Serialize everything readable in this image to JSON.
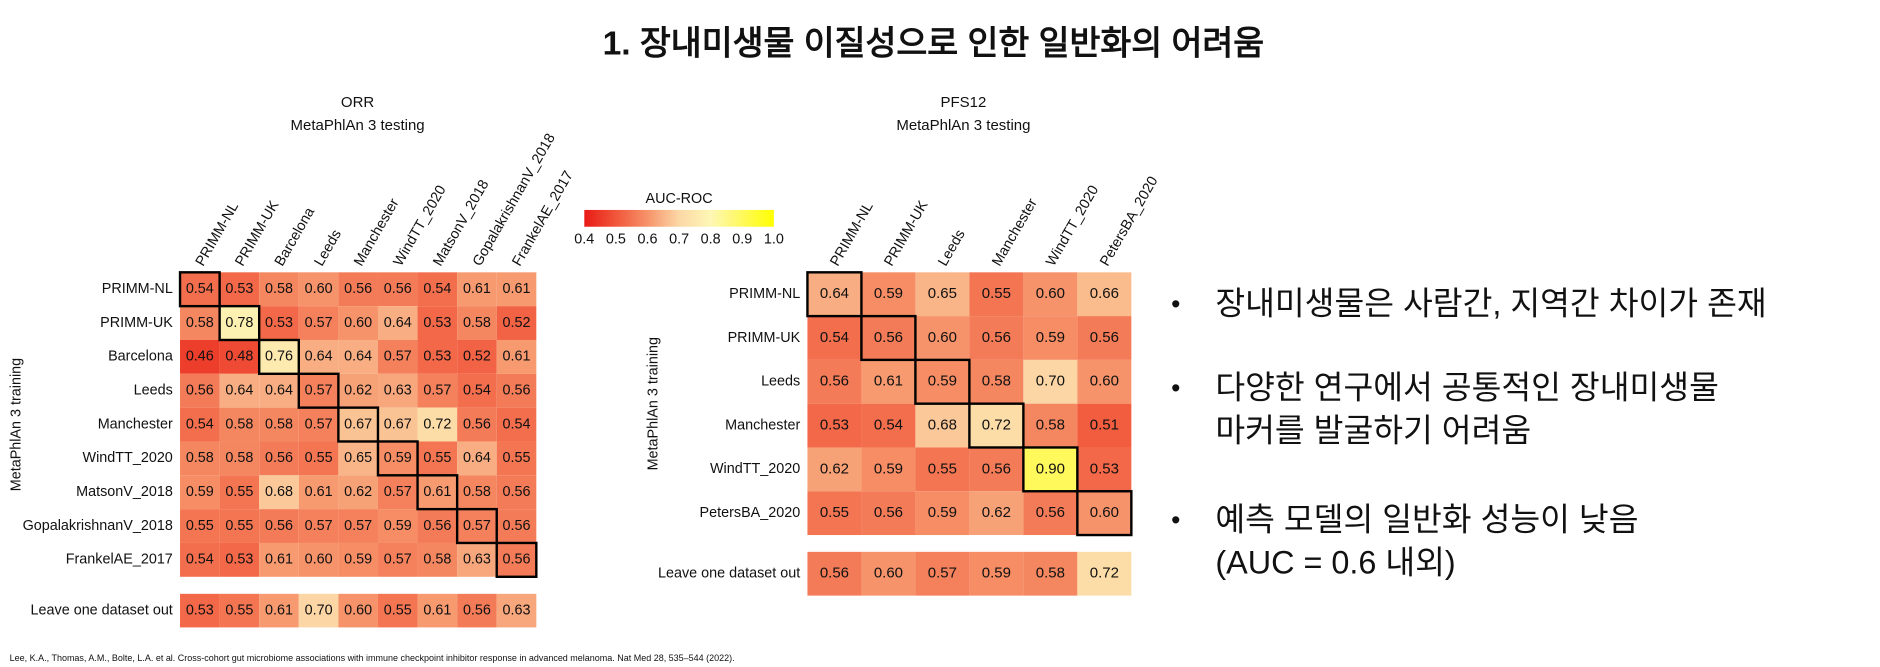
{
  "title": "1. 장내미생물 이질성으로 인한 일반화의 어려움",
  "colorbar": {
    "label": "AUC-ROC",
    "lim": [
      0.4,
      1
    ],
    "ticks": [
      0.4,
      0.5,
      0.6,
      0.7,
      0.8,
      0.9,
      {
        "value": 1,
        "label": "1.0"
      }
    ],
    "colors": [
      "#e81b16",
      "#f1563a",
      "#f6936a",
      "#fcd7a5",
      "#fdf7b5",
      "#fff95c",
      "#ffff00"
    ]
  },
  "chart_data": [
    {
      "type": "heatmap",
      "title": "ORR",
      "subtitle": "MetaPhlAn 3 testing",
      "ylabel": "MetaPhlAn 3 training",
      "x_categories": [
        "PRIMM-NL",
        "PRIMM-UK",
        "Barcelona",
        "Leeds",
        "Manchester",
        "WindTT_2020",
        "MatsonV_2018",
        "GopalakrishnanV_2018",
        "FrankelAE_2017"
      ],
      "y_categories": [
        "PRIMM-NL",
        "PRIMM-UK",
        "Barcelona",
        "Leeds",
        "Manchester",
        "WindTT_2020",
        "MatsonV_2018",
        "GopalakrishnanV_2018",
        "FrankelAE_2017"
      ],
      "values": [
        [
          0.54,
          0.53,
          0.58,
          0.6,
          0.56,
          0.56,
          0.54,
          0.61,
          0.61
        ],
        [
          0.58,
          0.78,
          0.53,
          0.57,
          0.6,
          0.64,
          0.53,
          0.58,
          0.52
        ],
        [
          0.46,
          0.48,
          0.76,
          0.64,
          0.64,
          0.57,
          0.53,
          0.52,
          0.61
        ],
        [
          0.56,
          0.64,
          0.64,
          0.57,
          0.62,
          0.63,
          0.57,
          0.54,
          0.56
        ],
        [
          0.54,
          0.58,
          0.58,
          0.57,
          0.67,
          0.67,
          0.72,
          0.56,
          0.54
        ],
        [
          0.58,
          0.58,
          0.56,
          0.55,
          0.65,
          0.59,
          0.55,
          0.64,
          0.55
        ],
        [
          0.59,
          0.55,
          0.68,
          0.61,
          0.62,
          0.57,
          0.61,
          0.58,
          0.56
        ],
        [
          0.55,
          0.55,
          0.56,
          0.57,
          0.57,
          0.59,
          0.56,
          0.57,
          0.56
        ],
        [
          0.54,
          0.53,
          0.61,
          0.6,
          0.59,
          0.57,
          0.58,
          0.63,
          0.56
        ]
      ],
      "value_labels": [
        [
          "0.54",
          "0.53",
          "0.58",
          "0.60",
          "0.56",
          "0.56",
          "0.54",
          "0.61",
          "0.61"
        ],
        [
          "0.58",
          "0.78",
          "0.53",
          "0.57",
          "0.60",
          "0.64",
          "0.53",
          "0.58",
          "0.52"
        ],
        [
          "0.46",
          "0.48",
          "0.76",
          "0.64",
          "0.64",
          "0.57",
          "0.53",
          "0.52",
          "0.61"
        ],
        [
          "0.56",
          "0.64",
          "0.64",
          "0.57",
          "0.62",
          "0.63",
          "0.57",
          "0.54",
          "0.56"
        ],
        [
          "0.54",
          "0.58",
          "0.58",
          "0.57",
          "0.67",
          "0.67",
          "0.72",
          "0.56",
          "0.54"
        ],
        [
          "0.58",
          "0.58",
          "0.56",
          "0.55",
          "0.65",
          "0.59",
          "0.55",
          "0.64",
          "0.55"
        ],
        [
          "0.59",
          "0.55",
          "0.68",
          "0.61",
          "0.62",
          "0.57",
          "0.61",
          "0.58",
          "0.56"
        ],
        [
          "0.55",
          "0.55",
          "0.56",
          "0.57",
          "0.57",
          "0.59",
          "0.56",
          "0.57",
          "0.56"
        ],
        [
          "0.54",
          "0.53",
          "0.61",
          "0.60",
          "0.59",
          "0.57",
          "0.58",
          "0.63",
          "0.56"
        ]
      ],
      "extra_row": {
        "label": "Leave one dataset out",
        "values": [
          0.53,
          0.55,
          0.61,
          0.7,
          0.6,
          0.55,
          0.61,
          0.56,
          0.63
        ],
        "value_labels": [
          "0.53",
          "0.55",
          "0.61",
          "0.70",
          "0.60",
          "0.55",
          "0.61",
          "0.56",
          "0.63"
        ]
      }
    },
    {
      "type": "heatmap",
      "title": "PFS12",
      "subtitle": "MetaPhlAn 3 testing",
      "ylabel": "MetaPhlAn 3 training",
      "x_categories": [
        "PRIMM-NL",
        "PRIMM-UK",
        "Leeds",
        "Manchester",
        "WindTT_2020",
        "PetersBA_2020"
      ],
      "y_categories": [
        "PRIMM-NL",
        "PRIMM-UK",
        "Leeds",
        "Manchester",
        "WindTT_2020",
        "PetersBA_2020"
      ],
      "values": [
        [
          0.64,
          0.59,
          0.65,
          0.55,
          0.6,
          0.66
        ],
        [
          0.54,
          0.56,
          0.6,
          0.56,
          0.59,
          0.56
        ],
        [
          0.56,
          0.61,
          0.59,
          0.58,
          0.7,
          0.6
        ],
        [
          0.53,
          0.54,
          0.68,
          0.72,
          0.58,
          0.51
        ],
        [
          0.62,
          0.59,
          0.55,
          0.56,
          0.9,
          0.53
        ],
        [
          0.55,
          0.56,
          0.59,
          0.62,
          0.56,
          0.6
        ]
      ],
      "value_labels": [
        [
          "0.64",
          "0.59",
          "0.65",
          "0.55",
          "0.60",
          "0.66"
        ],
        [
          "0.54",
          "0.56",
          "0.60",
          "0.56",
          "0.59",
          "0.56"
        ],
        [
          "0.56",
          "0.61",
          "0.59",
          "0.58",
          "0.70",
          "0.60"
        ],
        [
          "0.53",
          "0.54",
          "0.68",
          "0.72",
          "0.58",
          "0.51"
        ],
        [
          "0.62",
          "0.59",
          "0.55",
          "0.56",
          "0.90",
          "0.53"
        ],
        [
          "0.55",
          "0.56",
          "0.59",
          "0.62",
          "0.56",
          "0.60"
        ]
      ],
      "extra_row": {
        "label": "Leave one dataset out",
        "values": [
          0.56,
          0.6,
          0.57,
          0.59,
          0.58,
          0.72
        ],
        "value_labels": [
          "0.56",
          "0.60",
          "0.57",
          "0.59",
          "0.58",
          "0.72"
        ]
      }
    }
  ],
  "bullets": [
    [
      "장내미생물은 사람간, 지역간 차이가 존재"
    ],
    [
      "다양한 연구에서 공통적인 장내미생물",
      "마커를 발굴하기 어려움"
    ],
    [
      "예측 모델의 일반화 성능이 낮음",
      "(AUC = 0.6 내외)"
    ]
  ],
  "citation": "Lee, K.A., Thomas, A.M., Bolte, L.A. et al. Cross-cohort gut microbiome associations with immune checkpoint inhibitor response in advanced melanoma. Nat Med 28, 535–544 (2022)."
}
